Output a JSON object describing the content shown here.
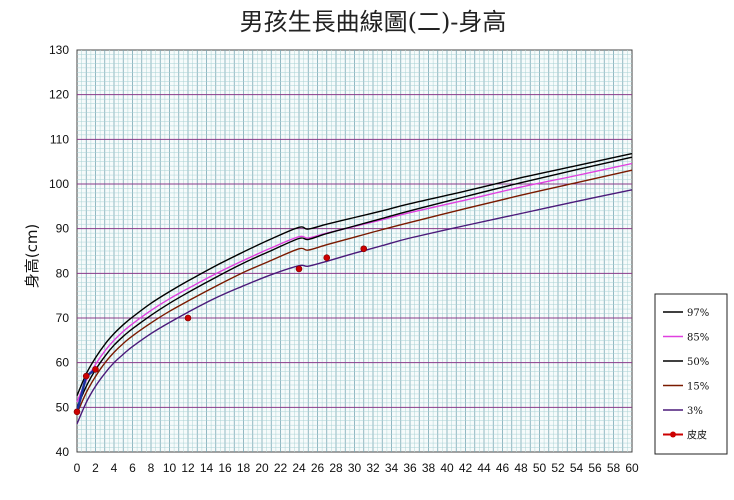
{
  "chart_data": {
    "type": "line",
    "title": "男孩生長曲線圖(二)-身高",
    "xlabel": "",
    "ylabel": "身高(cm)",
    "xlim": [
      0,
      60
    ],
    "ylim": [
      40,
      130
    ],
    "x_ticks": [
      0,
      2,
      4,
      6,
      8,
      10,
      12,
      14,
      16,
      18,
      20,
      22,
      24,
      26,
      28,
      30,
      32,
      34,
      36,
      38,
      40,
      42,
      44,
      46,
      48,
      50,
      52,
      54,
      56,
      58,
      60
    ],
    "y_ticks": [
      40,
      50,
      60,
      70,
      80,
      90,
      100,
      110,
      120,
      130
    ],
    "grid": true,
    "legend_position": "right",
    "x": [
      0,
      1,
      2,
      3,
      4,
      5,
      6,
      8,
      10,
      12,
      15,
      18,
      21,
      24,
      25,
      27,
      30,
      33,
      36,
      42,
      48,
      54,
      60
    ],
    "series": [
      {
        "name": "97%",
        "color": "#000000",
        "values": [
          52.6,
          57.5,
          61.1,
          64.1,
          66.5,
          68.5,
          70.2,
          73.3,
          75.9,
          78.3,
          81.7,
          84.8,
          87.7,
          90.3,
          89.9,
          91.0,
          92.5,
          94.0,
          95.6,
          98.4,
          101.4,
          104.1,
          106.8
        ]
      },
      {
        "name": "85%",
        "color": "#e040e0",
        "values": [
          51.2,
          56.0,
          59.6,
          62.6,
          65.0,
          67.0,
          68.7,
          71.7,
          74.3,
          76.6,
          79.9,
          82.9,
          85.7,
          88.2,
          87.9,
          89.0,
          90.5,
          92.0,
          93.6,
          96.4,
          99.3,
          101.9,
          104.6
        ]
      },
      {
        "name": "50%",
        "color": "#000000",
        "values": [
          49.9,
          54.7,
          58.4,
          61.4,
          63.9,
          65.9,
          67.6,
          70.6,
          73.3,
          75.7,
          79.1,
          82.3,
          85.1,
          87.8,
          87.6,
          88.9,
          90.6,
          92.3,
          94.0,
          97.2,
          100.3,
          103.2,
          106.0
        ]
      },
      {
        "name": "15%",
        "color": "#7a1a00",
        "values": [
          48.6,
          53.3,
          56.9,
          59.9,
          62.3,
          64.3,
          66.0,
          68.9,
          71.5,
          73.8,
          77.1,
          80.2,
          82.9,
          85.5,
          85.2,
          86.4,
          88.1,
          89.8,
          91.4,
          94.5,
          97.5,
          100.3,
          103.1
        ]
      },
      {
        "name": "3%",
        "color": "#4b1a7a",
        "values": [
          46.3,
          51.1,
          54.7,
          57.6,
          60.0,
          61.9,
          63.6,
          66.5,
          69.0,
          71.3,
          74.5,
          77.2,
          79.7,
          81.7,
          81.6,
          82.7,
          84.5,
          86.2,
          87.9,
          90.7,
          93.4,
          96.1,
          98.7
        ]
      }
    ],
    "points_series": {
      "name": "皮皮",
      "color": "#cc0000",
      "line_color": "#1a2fa0",
      "x": [
        0,
        1,
        2,
        12,
        24,
        27,
        31
      ],
      "y": [
        49,
        57,
        58.5,
        70,
        81,
        83.5,
        85.5
      ]
    }
  }
}
